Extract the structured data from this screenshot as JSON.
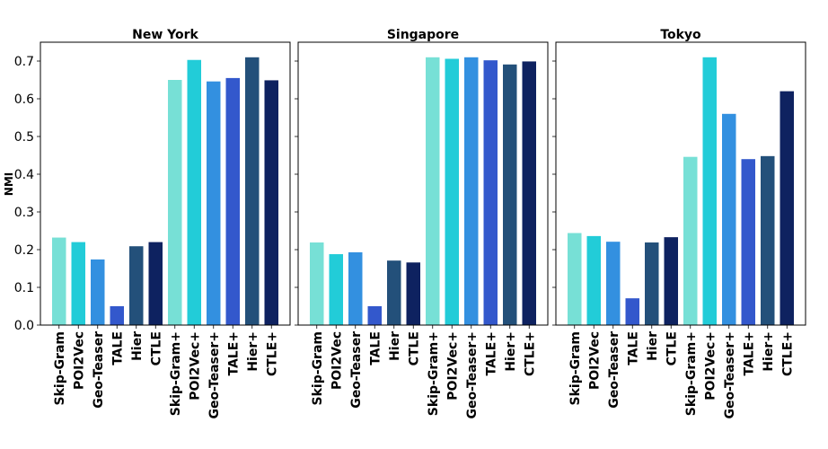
{
  "chart_data": {
    "type": "bar",
    "ylabel": "NMI",
    "ylim": [
      0,
      0.75
    ],
    "yticks": [
      0.0,
      0.1,
      0.2,
      0.3,
      0.4,
      0.5,
      0.6,
      0.7
    ],
    "ytick_labels": [
      "0.0",
      "0.1",
      "0.2",
      "0.3",
      "0.4",
      "0.5",
      "0.6",
      "0.7"
    ],
    "categories": [
      "Skip-Gram",
      "POI2Vec",
      "Geo-Teaser",
      "TALE",
      "Hier",
      "CTLE",
      "Skip-Gram+",
      "POI2Vec+",
      "Geo-Teaser+",
      "TALE+",
      "Hier+",
      "CTLE+"
    ],
    "colors": [
      "#77e0d6",
      "#22ccd8",
      "#3390e0",
      "#3358cc",
      "#23507a",
      "#0e2260",
      "#77e0d6",
      "#22ccd8",
      "#3390e0",
      "#3358cc",
      "#23507a",
      "#0e2260"
    ],
    "panels": [
      {
        "title": "New York",
        "values": [
          0.232,
          0.22,
          0.174,
          0.05,
          0.209,
          0.22,
          0.65,
          0.703,
          0.646,
          0.655,
          0.71,
          0.649
        ]
      },
      {
        "title": "Singapore",
        "values": [
          0.219,
          0.188,
          0.193,
          0.05,
          0.171,
          0.166,
          0.71,
          0.706,
          0.71,
          0.702,
          0.691,
          0.699
        ]
      },
      {
        "title": "Tokyo",
        "values": [
          0.244,
          0.236,
          0.221,
          0.071,
          0.219,
          0.233,
          0.446,
          0.71,
          0.56,
          0.44,
          0.448,
          0.62
        ]
      }
    ]
  }
}
